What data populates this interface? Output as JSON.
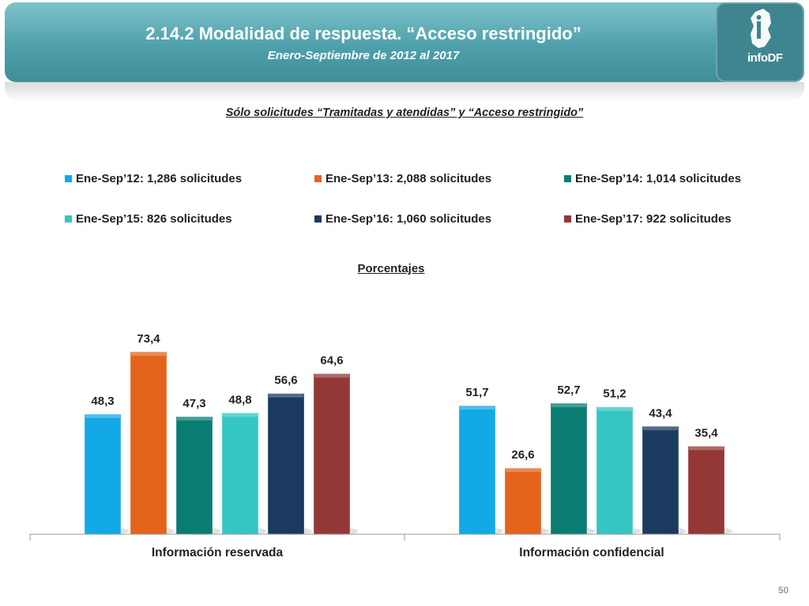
{
  "header": {
    "title": "2.14.2 Modalidad de respuesta. “Acceso restringido”",
    "subtitle": "Enero-Septiembre de 2012 al 2017",
    "logo_text": "infoDF"
  },
  "heading": "Sólo solicitudes “Tramitadas y atendidas” y “Acceso restringido”",
  "percent_label": "Porcentajes",
  "page_number": "50",
  "chart_data": {
    "type": "bar",
    "categories": [
      "Información reservada",
      "Información confidencial"
    ],
    "series": [
      {
        "name": "Ene-Sep’12: 1,286 solicitudes",
        "color": "#12a9e6",
        "values": [
          48.3,
          51.7
        ],
        "labels": [
          "48,3",
          "51,7"
        ]
      },
      {
        "name": "Ene-Sep’13: 2,088 solicitudes",
        "color": "#e4641c",
        "values": [
          73.4,
          26.6
        ],
        "labels": [
          "73,4",
          "26,6"
        ]
      },
      {
        "name": "Ene-Sep’14: 1,014 solicitudes",
        "color": "#0a7d72",
        "values": [
          47.3,
          52.7
        ],
        "labels": [
          "47,3",
          "52,7"
        ]
      },
      {
        "name": "Ene-Sep’15: 826 solicitudes",
        "color": "#35c6c3",
        "values": [
          48.8,
          51.2
        ],
        "labels": [
          "48,8",
          "51,2"
        ]
      },
      {
        "name": "Ene-Sep’16: 1,060 solicitudes",
        "color": "#1b3a5f",
        "values": [
          56.6,
          43.4
        ],
        "labels": [
          "56,6",
          "43,4"
        ]
      },
      {
        "name": "Ene-Sep’17: 922 solicitudes",
        "color": "#943737",
        "values": [
          64.6,
          35.4
        ],
        "labels": [
          "64,6",
          "35,4"
        ]
      }
    ],
    "ylim": [
      0,
      80
    ],
    "legend_position": "top",
    "grid": false
  }
}
